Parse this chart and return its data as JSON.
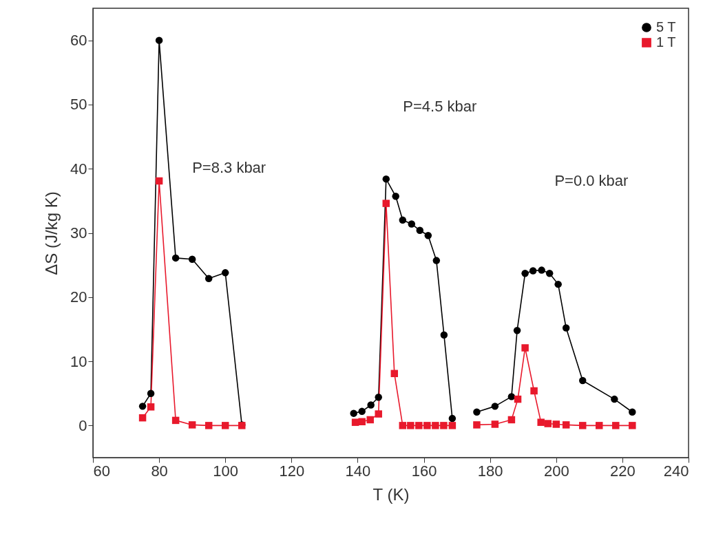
{
  "chart_data": {
    "type": "line",
    "xlabel": "T (K)",
    "ylabel": "ΔS (J/kg K)",
    "xlim": [
      60,
      240
    ],
    "xticks": [
      60,
      80,
      100,
      120,
      140,
      160,
      180,
      200,
      220,
      240
    ],
    "ylim": [
      -5,
      65
    ],
    "yticks": [
      0,
      10,
      20,
      30,
      40,
      50,
      60
    ],
    "grid": false,
    "legend": "top right",
    "series": [
      {
        "name": "5 T",
        "color": "#000000",
        "marker": "circle",
        "x": [
          75,
          77.5,
          80,
          85,
          90,
          95,
          100,
          105,
          120,
          138.8,
          141.3,
          144,
          146.3,
          148.6,
          151.5,
          153.6,
          156.3,
          158.8,
          161.3,
          163.8,
          166.1,
          168.6,
          172,
          176,
          181.5,
          186.5,
          188.2,
          190.6,
          193,
          195.6,
          198,
          200.6,
          203,
          208,
          217.6,
          223
        ],
        "values": [
          3.0,
          5.0,
          60,
          26.1,
          25.9,
          22.9,
          23.8,
          0.1,
          null,
          1.9,
          2.2,
          3.2,
          4.4,
          38.4,
          35.7,
          32.0,
          31.4,
          30.4,
          29.6,
          25.7,
          14.1,
          1.1,
          null,
          2.1,
          3.0,
          4.5,
          14.8,
          23.7,
          24.1,
          24.2,
          23.7,
          22.0,
          15.2,
          7.0,
          4.1,
          2.1
        ]
      },
      {
        "name": "1 T",
        "color": "#e8192c",
        "marker": "square",
        "x": [
          75,
          77.5,
          80,
          85,
          90,
          95,
          100,
          105,
          120,
          139.3,
          141.3,
          143.8,
          146.3,
          148.6,
          151.1,
          153.6,
          156,
          158.5,
          161,
          163.5,
          166,
          168.6,
          172,
          176,
          181.5,
          186.5,
          188.4,
          190.6,
          193.3,
          195.4,
          197.5,
          200,
          203,
          208,
          213,
          218,
          223
        ],
        "values": [
          1.2,
          2.9,
          38.1,
          0.8,
          0.1,
          0,
          0,
          0,
          null,
          0.5,
          0.6,
          0.9,
          1.8,
          34.6,
          8.1,
          0,
          0,
          0,
          0,
          0,
          0,
          0,
          null,
          0.1,
          0.2,
          0.9,
          4.1,
          12.1,
          5.4,
          0.5,
          0.3,
          0.2,
          0.1,
          0,
          0,
          0,
          0
        ]
      }
    ],
    "annotations": [
      "P=8.3 kbar",
      "P=4.5 kbar",
      "P=0.0 kbar"
    ]
  }
}
